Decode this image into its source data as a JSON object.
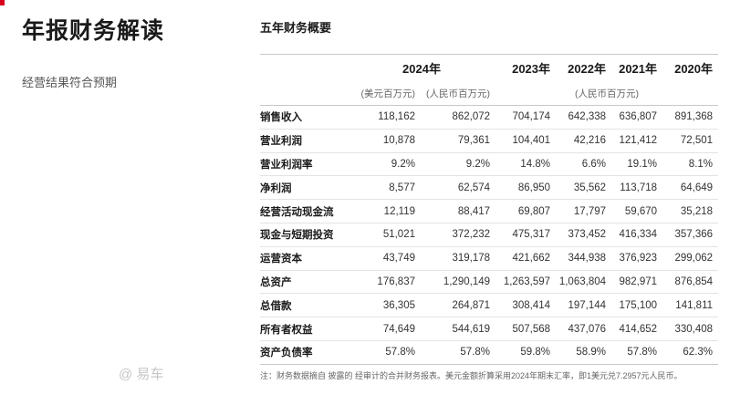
{
  "page": {
    "title": "年报财务解读",
    "subtitle": "经营结果符合预期"
  },
  "section": {
    "title": "五年财务概要"
  },
  "table": {
    "years": {
      "y2024": "2024年",
      "y2023": "2023年",
      "y2022": "2022年",
      "y2021": "2021年",
      "y2020": "2020年"
    },
    "units": {
      "usd": "(美元百万元)",
      "rmb2024": "(人民币百万元)",
      "rmb_hist": "(人民币百万元)"
    },
    "rows": [
      {
        "label": "销售收入",
        "usd2024": "118,162",
        "rmb2024": "862,072",
        "y2023": "704,174",
        "y2022": "642,338",
        "y2021": "636,807",
        "y2020": "891,368"
      },
      {
        "label": "营业利润",
        "usd2024": "10,878",
        "rmb2024": "79,361",
        "y2023": "104,401",
        "y2022": "42,216",
        "y2021": "121,412",
        "y2020": "72,501"
      },
      {
        "label": "营业利润率",
        "usd2024": "9.2%",
        "rmb2024": "9.2%",
        "y2023": "14.8%",
        "y2022": "6.6%",
        "y2021": "19.1%",
        "y2020": "8.1%"
      },
      {
        "label": "净利润",
        "usd2024": "8,577",
        "rmb2024": "62,574",
        "y2023": "86,950",
        "y2022": "35,562",
        "y2021": "113,718",
        "y2020": "64,649"
      },
      {
        "label": "经营活动现金流",
        "usd2024": "12,119",
        "rmb2024": "88,417",
        "y2023": "69,807",
        "y2022": "17,797",
        "y2021": "59,670",
        "y2020": "35,218"
      },
      {
        "label": "现金与短期投资",
        "usd2024": "51,021",
        "rmb2024": "372,232",
        "y2023": "475,317",
        "y2022": "373,452",
        "y2021": "416,334",
        "y2020": "357,366"
      },
      {
        "label": "运营资本",
        "usd2024": "43,749",
        "rmb2024": "319,178",
        "y2023": "421,662",
        "y2022": "344,938",
        "y2021": "376,923",
        "y2020": "299,062"
      },
      {
        "label": "总资产",
        "usd2024": "176,837",
        "rmb2024": "1,290,149",
        "y2023": "1,263,597",
        "y2022": "1,063,804",
        "y2021": "982,971",
        "y2020": "876,854"
      },
      {
        "label": "总借款",
        "usd2024": "36,305",
        "rmb2024": "264,871",
        "y2023": "308,414",
        "y2022": "197,144",
        "y2021": "175,100",
        "y2020": "141,811"
      },
      {
        "label": "所有者权益",
        "usd2024": "74,649",
        "rmb2024": "544,619",
        "y2023": "507,568",
        "y2022": "437,076",
        "y2021": "414,652",
        "y2020": "330,408"
      },
      {
        "label": "资产负债率",
        "usd2024": "57.8%",
        "rmb2024": "57.8%",
        "y2023": "59.8%",
        "y2022": "58.9%",
        "y2021": "57.8%",
        "y2020": "62.3%"
      }
    ]
  },
  "footnote": "注：财务数据摘自      披露的         经审计的合并财务报表。美元金额折算采用2024年期末汇率，即1美元兑7.2957元人民币。",
  "watermark": "@ 易车"
}
